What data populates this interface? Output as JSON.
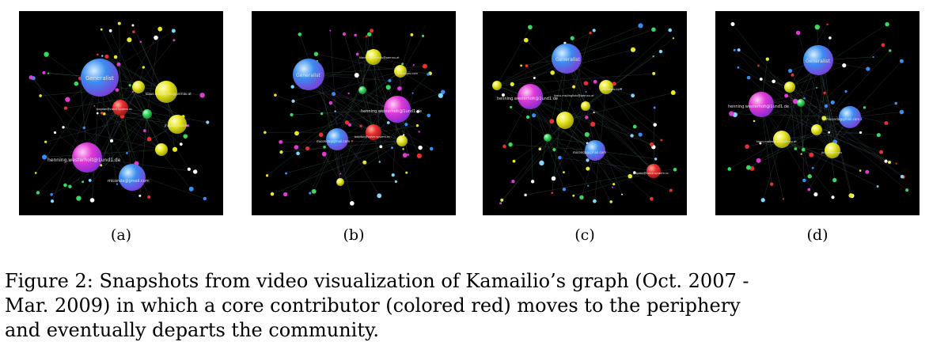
{
  "figure": {
    "panels": [
      {
        "label": "(a)",
        "node_labels": {
          "generalist": "Generalist",
          "henning": "henning.westerholt@1und1.de",
          "miconda": "miconda@gmail.com",
          "bogdan": "bogdan@voice-system.ro",
          "klaus": "klaus.mailinglists@pernau.at",
          "jh": "jh@tutpro.com"
        }
      },
      {
        "label": "(b)",
        "node_labels": {
          "generalist": "Generalist",
          "henning": "henning.westerholt@1und1.de",
          "miconda": "miconda@gmail.com",
          "bogdan": "bogdan@voice-system.ro",
          "klaus": "klaus.mailinglists@pernau.at",
          "jh": "jh@tutpro.com"
        }
      },
      {
        "label": "(c)",
        "node_labels": {
          "generalist": "Generalist",
          "henning": "henning.westerholt@1und1.de",
          "miconda": "miconda@gmail.com",
          "bogdan": "bogdan@voice-system.ro",
          "klaus": "klaus.mailinglists@pernau.at",
          "jh": "jh@tutpro.com"
        }
      },
      {
        "label": "(d)",
        "node_labels": {
          "generalist": "Generalist",
          "henning": "henning.westerholt@1und1.de",
          "miconda": "miconda@gmail.com",
          "klaus": "klaus.mailinglists@pernau.at",
          "jh": "jh@tutpro.com"
        }
      }
    ],
    "caption_lines": [
      "Figure 2: Snapshots from video visualization of Kamailio’s graph (Oct. 2007 -",
      "Mar.  2009) in which a core contributor (colored red) moves to the periphery",
      "and eventually departs the community."
    ],
    "colors": {
      "background": "#000000",
      "core_contributor": "#e83030",
      "generalist": "#3a8df0",
      "magenta": "#e23ad6",
      "yellow": "#e8e82a",
      "green": "#3ad860"
    }
  }
}
